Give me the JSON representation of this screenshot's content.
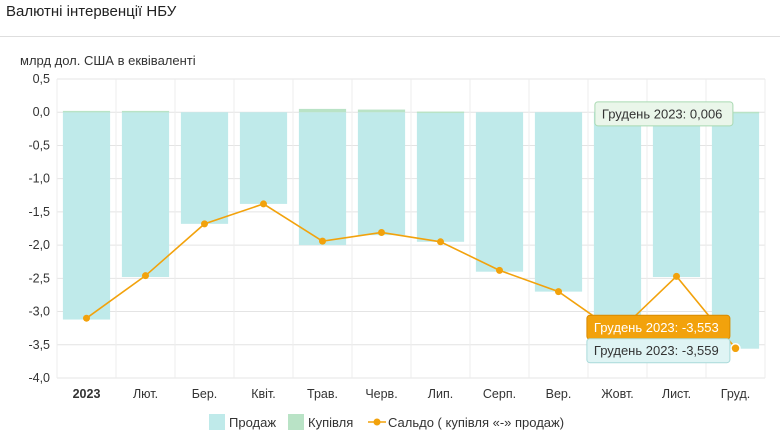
{
  "header": {
    "title": "Валютні інтервенції НБУ"
  },
  "chart_data": {
    "type": "bar",
    "title": "Валютні інтервенції НБУ",
    "ylabel": "млрд дол. США в еквіваленті",
    "xlabel": "",
    "ylim": [
      -4.0,
      0.5
    ],
    "yticks": [
      "0,5",
      "0,0",
      "-0,5",
      "-1,0",
      "-1,5",
      "-2,0",
      "-2,5",
      "-3,0",
      "-3,5",
      "-4,0"
    ],
    "categories": [
      "2023",
      "Лют.",
      "Бер.",
      "Квіт.",
      "Трав.",
      "Черв.",
      "Лип.",
      "Серп.",
      "Вер.",
      "Жовт.",
      "Лист.",
      "Груд."
    ],
    "series": [
      {
        "name": "Продаж",
        "kind": "bar",
        "color": "#bfeaea",
        "values": [
          -3.12,
          -2.48,
          -1.68,
          -1.38,
          -2.0,
          -1.85,
          -1.95,
          -2.4,
          -2.7,
          -3.1,
          -2.48,
          -3.559
        ]
      },
      {
        "name": "Купівля",
        "kind": "bar",
        "color": "#b9e3c6",
        "values": [
          0.02,
          0.02,
          0.0,
          0.0,
          0.05,
          0.04,
          0.01,
          0.0,
          0.0,
          0.0,
          0.0,
          0.006
        ]
      },
      {
        "name": "Сальдо ( купівля «-» продаж)",
        "kind": "line",
        "color": "#f2a20c",
        "values": [
          -3.1,
          -2.46,
          -1.68,
          -1.38,
          -1.94,
          -1.81,
          -1.95,
          -2.38,
          -2.7,
          -3.32,
          -2.47,
          -3.553
        ]
      }
    ],
    "tooltips": [
      {
        "text": "Грудень 2023: 0,006",
        "color": "#eaf6ea",
        "border": "#a9d9b2",
        "text_color": "#333333"
      },
      {
        "text": "Грудень 2023: -3,553",
        "color": "#f2a20c",
        "border": "#d88a00",
        "text_color": "#ffffff"
      },
      {
        "text": "Грудень 2023: -3,559",
        "color": "#dff4f4",
        "border": "#a9dada",
        "text_color": "#333333"
      }
    ],
    "grid": true,
    "legend": "bottom"
  }
}
